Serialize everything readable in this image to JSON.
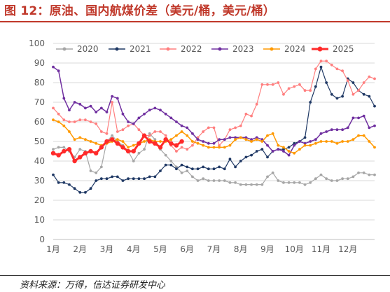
{
  "header": {
    "title": "图 12：原油、国内航煤价差（美元/桶，美元/桶）"
  },
  "footer": {
    "source": "资料来源：万得，信达证券研发中心"
  },
  "colors": {
    "title": "#c0392b",
    "grid": "#d9d9d9",
    "axis": "#bfbfbf",
    "text": "#595959"
  },
  "chart_data": {
    "type": "line",
    "title": "",
    "xlabel": "",
    "ylabel": "",
    "ylim": [
      0,
      100
    ],
    "yticks": [
      0,
      10,
      20,
      30,
      40,
      50,
      60,
      70,
      80,
      90,
      100
    ],
    "xlim": [
      1,
      13
    ],
    "xticks": [
      1,
      2,
      3,
      4,
      5,
      6,
      7,
      8,
      9,
      10,
      11,
      12
    ],
    "xtick_labels": [
      "1月",
      "2月",
      "3月",
      "4月",
      "5月",
      "6月",
      "7月",
      "8月",
      "9月",
      "10月",
      "11月",
      "12月"
    ],
    "grid": "horizontal",
    "legend_position": "top",
    "series": [
      {
        "name": "2020",
        "color": "#a6a6a6",
        "line_width": 1.2,
        "marker": "circle",
        "x": [
          1.0,
          1.2,
          1.4,
          1.6,
          1.8,
          2.0,
          2.2,
          2.4,
          2.6,
          2.8,
          3.0,
          3.2,
          3.4,
          3.6,
          3.8,
          4.0,
          4.2,
          4.4,
          4.6,
          4.8,
          5.0,
          5.2,
          5.4,
          5.6,
          5.8,
          6.0,
          6.2,
          6.4,
          6.6,
          6.8,
          7.0,
          7.2,
          7.4,
          7.6,
          7.8,
          8.0,
          8.2,
          8.4,
          8.6,
          8.8,
          9.0,
          9.2,
          9.4,
          9.6,
          9.8,
          10.0,
          10.2,
          10.4,
          10.6,
          10.8,
          11.0,
          11.2,
          11.4,
          11.6,
          11.8,
          12.0,
          12.2,
          12.4,
          12.6,
          12.8,
          13.0
        ],
        "values": [
          46,
          47,
          47,
          45,
          42,
          46,
          45,
          35,
          34,
          37,
          50,
          53,
          50,
          48,
          45,
          40,
          44,
          46,
          54,
          51,
          46,
          43,
          40,
          37,
          34,
          35,
          32,
          30,
          31,
          30,
          30,
          30,
          30,
          29,
          29,
          28,
          28,
          28,
          28,
          28,
          32,
          34,
          30,
          29,
          29,
          29,
          29,
          28,
          29,
          31,
          33,
          31,
          30,
          30,
          31,
          31,
          32,
          34,
          34,
          33,
          33
        ]
      },
      {
        "name": "2021",
        "color": "#1f3864",
        "line_width": 1.2,
        "marker": "circle",
        "x": [
          1.0,
          1.2,
          1.4,
          1.6,
          1.8,
          2.0,
          2.2,
          2.4,
          2.6,
          2.8,
          3.0,
          3.2,
          3.4,
          3.6,
          3.8,
          4.0,
          4.2,
          4.4,
          4.6,
          4.8,
          5.0,
          5.2,
          5.4,
          5.6,
          5.8,
          6.0,
          6.2,
          6.4,
          6.6,
          6.8,
          7.0,
          7.2,
          7.4,
          7.6,
          7.8,
          8.0,
          8.2,
          8.4,
          8.6,
          8.8,
          9.0,
          9.2,
          9.4,
          9.6,
          9.8,
          10.0,
          10.2,
          10.4,
          10.6,
          10.8,
          11.0,
          11.2,
          11.4,
          11.6,
          11.8,
          12.0,
          12.2,
          12.4,
          12.6,
          12.8,
          13.0
        ],
        "values": [
          33,
          29,
          29,
          28,
          26,
          24,
          24,
          26,
          30,
          31,
          31,
          32,
          32,
          30,
          31,
          31,
          31,
          31,
          32,
          32,
          35,
          38,
          38,
          36,
          38,
          37,
          36,
          36,
          37,
          36,
          36,
          37,
          36,
          41,
          37,
          40,
          42,
          43,
          45,
          46,
          42,
          45,
          46,
          46,
          47,
          49,
          50,
          52,
          70,
          78,
          88,
          80,
          74,
          72,
          73,
          82,
          80,
          76,
          74,
          73,
          68
        ]
      },
      {
        "name": "2022",
        "color": "#ff7f7f",
        "line_width": 1.2,
        "marker": "circle",
        "x": [
          1.0,
          1.2,
          1.4,
          1.6,
          1.8,
          2.0,
          2.2,
          2.4,
          2.6,
          2.8,
          3.0,
          3.2,
          3.4,
          3.6,
          3.8,
          4.0,
          4.2,
          4.4,
          4.6,
          4.8,
          5.0,
          5.2,
          5.4,
          5.6,
          5.8,
          6.0,
          6.2,
          6.4,
          6.6,
          6.8,
          7.0,
          7.2,
          7.4,
          7.6,
          7.8,
          8.0,
          8.2,
          8.4,
          8.6,
          8.8,
          9.0,
          9.2,
          9.4,
          9.6,
          9.8,
          10.0,
          10.2,
          10.4,
          10.6,
          10.8,
          11.0,
          11.2,
          11.4,
          11.6,
          11.8,
          12.0,
          12.2,
          12.4,
          12.6,
          12.8,
          13.0
        ],
        "values": [
          67,
          64,
          61,
          60,
          60,
          61,
          61,
          60,
          59,
          55,
          54,
          70,
          55,
          56,
          58,
          59,
          56,
          53,
          53,
          55,
          55,
          53,
          48,
          45,
          47,
          46,
          48,
          52,
          55,
          57,
          57,
          48,
          51,
          56,
          57,
          58,
          64,
          63,
          69,
          79,
          79,
          79,
          80,
          74,
          77,
          78,
          79,
          76,
          76,
          87,
          91,
          91,
          89,
          87,
          86,
          81,
          74,
          76,
          80,
          83,
          82
        ]
      },
      {
        "name": "2023",
        "color": "#7030a0",
        "line_width": 1.5,
        "marker": "circle",
        "x": [
          1.0,
          1.2,
          1.4,
          1.6,
          1.8,
          2.0,
          2.2,
          2.4,
          2.6,
          2.8,
          3.0,
          3.2,
          3.4,
          3.6,
          3.8,
          4.0,
          4.2,
          4.4,
          4.6,
          4.8,
          5.0,
          5.2,
          5.4,
          5.6,
          5.8,
          6.0,
          6.2,
          6.4,
          6.6,
          6.8,
          7.0,
          7.2,
          7.4,
          7.6,
          7.8,
          8.0,
          8.2,
          8.4,
          8.6,
          8.8,
          9.0,
          9.2,
          9.4,
          9.6,
          9.8,
          10.0,
          10.2,
          10.4,
          10.6,
          10.8,
          11.0,
          11.2,
          11.4,
          11.6,
          11.8,
          12.0,
          12.2,
          12.4,
          12.6,
          12.8,
          13.0
        ],
        "values": [
          88,
          86,
          72,
          66,
          70,
          69,
          67,
          68,
          65,
          67,
          65,
          73,
          72,
          64,
          60,
          59,
          62,
          64,
          66,
          67,
          66,
          64,
          62,
          60,
          58,
          57,
          54,
          51,
          50,
          49,
          49,
          51,
          51,
          52,
          52,
          52,
          52,
          51,
          52,
          51,
          48,
          45,
          46,
          45,
          43,
          48,
          50,
          49,
          50,
          51,
          54,
          55,
          56,
          56,
          56,
          57,
          62,
          62,
          63,
          57,
          58
        ]
      },
      {
        "name": "2024",
        "color": "#ff9900",
        "line_width": 1.5,
        "marker": "circle",
        "x": [
          1.0,
          1.2,
          1.4,
          1.6,
          1.8,
          2.0,
          2.2,
          2.4,
          2.6,
          2.8,
          3.0,
          3.2,
          3.4,
          3.6,
          3.8,
          4.0,
          4.2,
          4.4,
          4.6,
          4.8,
          5.0,
          5.2,
          5.4,
          5.6,
          5.8,
          6.0,
          6.2,
          6.4,
          6.6,
          6.8,
          7.0,
          7.2,
          7.4,
          7.6,
          7.8,
          8.0,
          8.2,
          8.4,
          8.6,
          8.8,
          9.0,
          9.2,
          9.4,
          9.6,
          9.8,
          10.0,
          10.2,
          10.4,
          10.6,
          10.8,
          11.0,
          11.2,
          11.4,
          11.6,
          11.8,
          12.0,
          12.2,
          12.4,
          12.6,
          12.8,
          13.0
        ],
        "values": [
          61,
          60,
          58,
          55,
          51,
          52,
          51,
          50,
          49,
          48,
          49,
          50,
          51,
          50,
          47,
          48,
          49,
          50,
          51,
          50,
          50,
          50,
          51,
          53,
          55,
          53,
          50,
          49,
          48,
          47,
          47,
          47,
          47,
          48,
          51,
          52,
          51,
          50,
          51,
          50,
          53,
          54,
          48,
          47,
          45,
          44,
          46,
          48,
          48,
          49,
          50,
          50,
          50,
          49,
          50,
          50,
          51,
          53,
          53,
          50,
          47
        ]
      },
      {
        "name": "2025",
        "color": "#ff2a2a",
        "line_width": 3.0,
        "marker": "circle",
        "x": [
          1.0,
          1.2,
          1.4,
          1.6,
          1.8,
          2.0,
          2.2,
          2.4,
          2.6,
          2.8,
          3.0,
          3.2,
          3.4,
          3.6,
          3.8,
          4.0,
          4.2,
          4.4,
          4.6,
          4.8,
          5.0,
          5.2,
          5.4,
          5.6,
          5.8
        ],
        "values": [
          44,
          43,
          45,
          46,
          40,
          42,
          44,
          45,
          44,
          47,
          50,
          51,
          49,
          47,
          45,
          45,
          49,
          53,
          50,
          49,
          47,
          51,
          49,
          48,
          50
        ]
      }
    ]
  }
}
